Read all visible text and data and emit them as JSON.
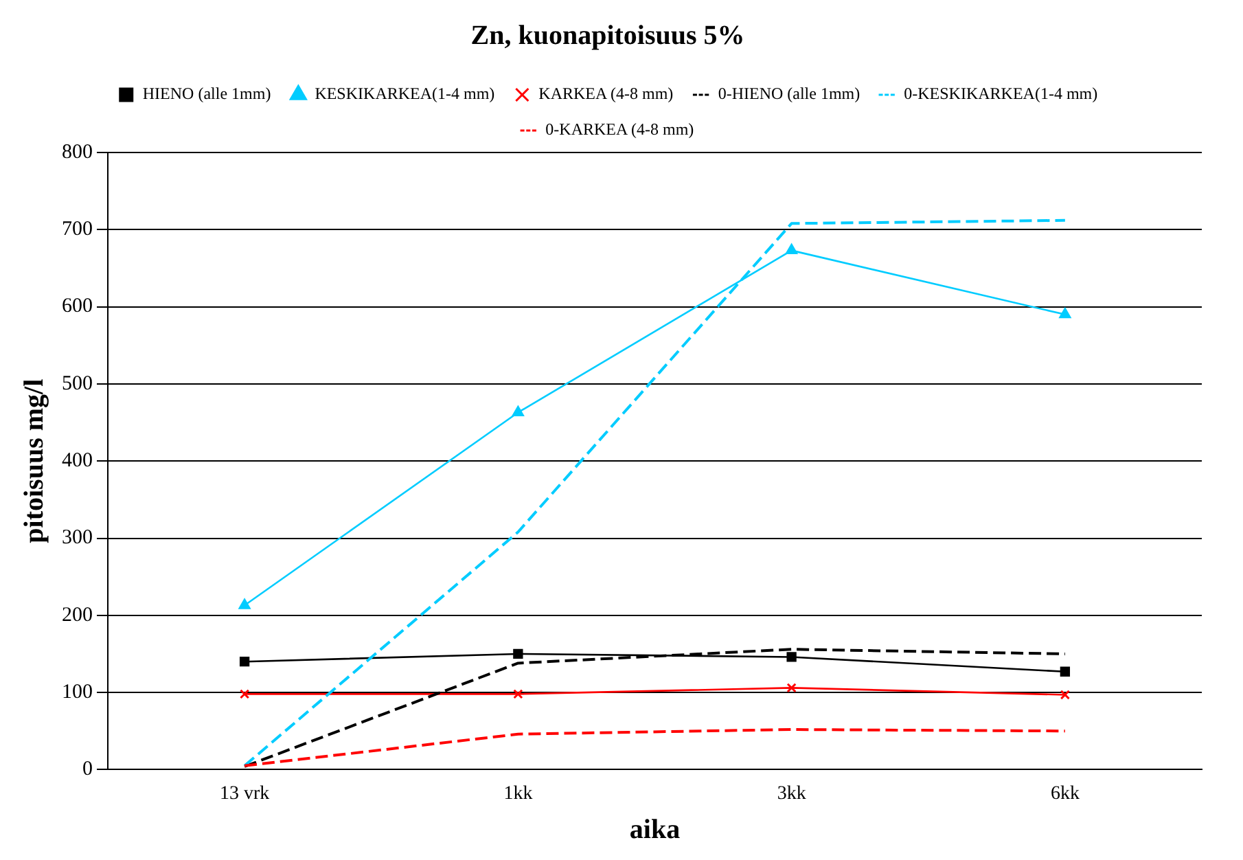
{
  "chart_data": {
    "type": "line",
    "title": "Zn, kuonapitoisuus 5%",
    "xlabel": "aika",
    "ylabel": "pitoisuus mg/l",
    "categories": [
      "13 vrk",
      "1kk",
      "3kk",
      "6kk"
    ],
    "series": [
      {
        "name": "HIENO (alle 1mm)",
        "color": "#000000",
        "values": [
          140,
          150,
          146,
          127
        ],
        "marker": "square",
        "line_style": "solid"
      },
      {
        "name": "KESKIKARKEA(1-4 mm)",
        "color": "#00ccff",
        "values": [
          213,
          463,
          673,
          590
        ],
        "marker": "triangle",
        "line_style": "solid"
      },
      {
        "name": "KARKEA (4-8 mm)",
        "color": "#ff0000",
        "values": [
          98,
          98,
          106,
          97
        ],
        "marker": "cross",
        "line_style": "solid"
      },
      {
        "name": "0-HIENO (alle 1mm)",
        "color": "#000000",
        "values": [
          4,
          138,
          156,
          150
        ],
        "marker": "none",
        "line_style": "dashed"
      },
      {
        "name": "0-KESKIKARKEA(1-4 mm)",
        "color": "#00ccff",
        "values": [
          5,
          308,
          708,
          712
        ],
        "marker": "none",
        "line_style": "dashed"
      },
      {
        "name": "0-KARKEA (4-8 mm)",
        "color": "#ff0000",
        "values": [
          5,
          46,
          52,
          50
        ],
        "marker": "none",
        "line_style": "dashed"
      }
    ],
    "ylim": [
      0,
      800
    ],
    "yticks": [
      0,
      100,
      200,
      300,
      400,
      500,
      600,
      700,
      800
    ],
    "grid": "y",
    "legend": "top"
  }
}
